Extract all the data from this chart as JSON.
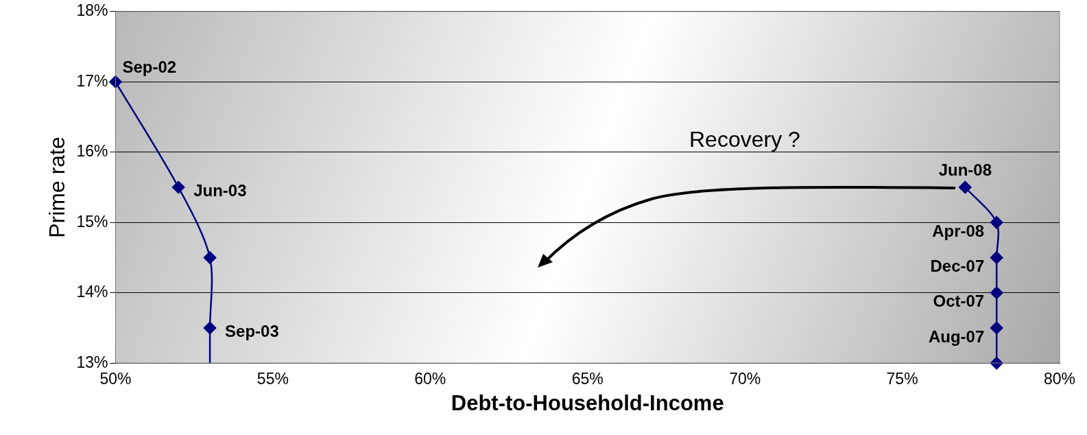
{
  "chart_data": {
    "type": "scatter",
    "xlabel": "Debt-to-Household-Income",
    "ylabel": "Prime rate",
    "annotations": [
      "Recovery ?"
    ],
    "series": [
      {
        "type": "line",
        "color": "#000080",
        "x": [
          50,
          52,
          53,
          53,
          53
        ],
        "values": [
          17,
          15.5,
          14.5,
          13.5,
          13
        ],
        "value_labels": [
          "Sep-02",
          "Jun-03",
          null,
          "Sep-03",
          null
        ]
      },
      {
        "type": "line",
        "color": "#000080",
        "x": [
          78,
          78,
          78,
          78,
          78,
          77
        ],
        "values": [
          13,
          13.5,
          14,
          14.5,
          15,
          15.5
        ],
        "value_labels": [
          null,
          "Aug-07",
          "Oct-07",
          "Dec-07",
          "Apr-08",
          "Jun-08"
        ]
      }
    ],
    "xlim": [
      50,
      80
    ],
    "ylim": [
      13,
      18
    ],
    "xticks": [
      {
        "value": 50,
        "label": "50%"
      },
      {
        "value": 55,
        "label": "55%"
      },
      {
        "value": 60,
        "label": "60%"
      },
      {
        "value": 65,
        "label": "65%"
      },
      {
        "value": 70,
        "label": "70%"
      },
      {
        "value": 75,
        "label": "75%"
      },
      {
        "value": 80,
        "label": "80%"
      }
    ],
    "yticks": [
      {
        "value": 13,
        "label": "13%"
      },
      {
        "value": 14,
        "label": "14%"
      },
      {
        "value": 15,
        "label": "15%"
      },
      {
        "value": 16,
        "label": "16%"
      },
      {
        "value": 17,
        "label": "17%"
      },
      {
        "value": 18,
        "label": "18%"
      }
    ],
    "grid": "y",
    "marker": "diamond",
    "legend": false
  }
}
